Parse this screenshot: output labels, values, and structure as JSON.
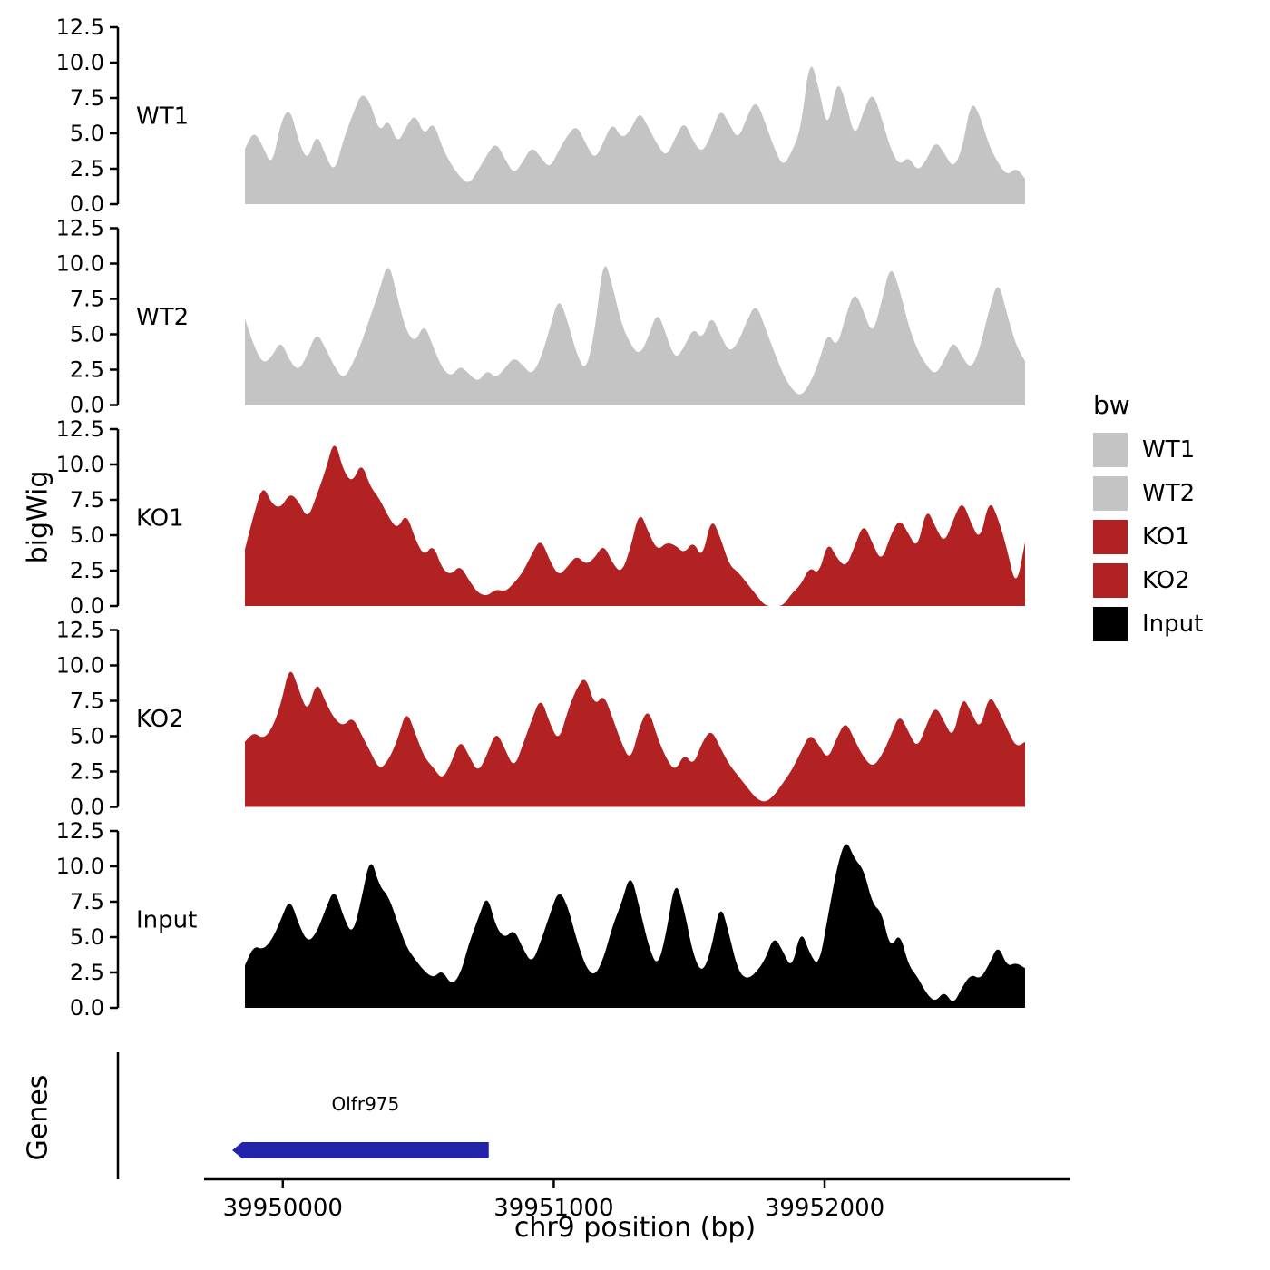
{
  "labels": {
    "y_title": "bigWig",
    "genes_title": "Genes",
    "x_title": "chr9 position (bp)"
  },
  "legend": {
    "title": "bw",
    "items": [
      {
        "label": "WT1",
        "color": "#c4c4c4"
      },
      {
        "label": "WT2",
        "color": "#c4c4c4"
      },
      {
        "label": "KO1",
        "color": "#b22222"
      },
      {
        "label": "KO2",
        "color": "#b22222"
      },
      {
        "label": "Input",
        "color": "#000000"
      }
    ]
  },
  "chart_data": {
    "type": "area",
    "title": "",
    "xlabel": "chr9 position (bp)",
    "ylabel": "bigWig",
    "x_range": [
      39949860,
      39952740
    ],
    "x_ticks": [
      39950000,
      39951000,
      39952000
    ],
    "y_ticks": [
      0.0,
      2.5,
      5.0,
      7.5,
      10.0,
      12.5
    ],
    "ylim": [
      0,
      12.5
    ],
    "tracks": [
      {
        "name": "WT1",
        "color": "#c4c4c4",
        "values": [
          3.9,
          5.2,
          4.1,
          2.6,
          5.8,
          6.9,
          4.4,
          3.0,
          5.1,
          3.4,
          2.2,
          4.6,
          6.3,
          7.9,
          7.2,
          5.0,
          6.1,
          4.2,
          5.5,
          6.4,
          4.8,
          5.9,
          4.0,
          2.8,
          1.9,
          1.4,
          2.4,
          3.5,
          4.4,
          3.2,
          2.1,
          3.0,
          4.1,
          3.3,
          2.5,
          3.8,
          4.9,
          5.6,
          4.3,
          3.1,
          4.4,
          5.8,
          4.6,
          5.2,
          6.6,
          5.4,
          4.2,
          3.3,
          4.7,
          5.9,
          4.4,
          3.6,
          4.9,
          6.8,
          5.7,
          4.5,
          6.2,
          7.4,
          5.8,
          4.0,
          2.6,
          3.7,
          5.3,
          10.5,
          8.2,
          5.1,
          8.9,
          7.3,
          4.6,
          6.6,
          8.0,
          6.1,
          3.9,
          2.7,
          3.4,
          2.3,
          3.1,
          4.5,
          3.6,
          2.5,
          3.9,
          7.4,
          6.2,
          4.1,
          2.9,
          2.0,
          2.6,
          1.8
        ]
      },
      {
        "name": "WT2",
        "color": "#c4c4c4",
        "values": [
          6.1,
          4.2,
          2.9,
          3.4,
          4.6,
          3.1,
          2.4,
          3.6,
          5.2,
          4.0,
          2.7,
          1.8,
          2.9,
          4.4,
          6.3,
          8.1,
          10.3,
          7.6,
          5.2,
          4.4,
          5.8,
          4.1,
          2.6,
          2.0,
          2.8,
          2.2,
          1.6,
          2.5,
          1.9,
          2.6,
          3.4,
          2.8,
          2.1,
          3.3,
          5.4,
          7.7,
          5.9,
          3.6,
          2.3,
          5.1,
          10.6,
          8.4,
          5.7,
          4.3,
          3.5,
          4.8,
          6.7,
          4.9,
          3.2,
          4.1,
          5.5,
          4.6,
          6.4,
          5.0,
          3.7,
          4.4,
          6.0,
          7.2,
          5.5,
          3.8,
          2.2,
          1.1,
          0.6,
          1.5,
          3.0,
          5.2,
          4.0,
          6.3,
          8.1,
          6.6,
          4.9,
          7.3,
          10.0,
          8.2,
          5.6,
          3.9,
          2.8,
          2.1,
          3.2,
          4.6,
          3.4,
          2.5,
          4.1,
          6.8,
          8.9,
          6.4,
          4.2,
          3.1
        ]
      },
      {
        "name": "KO1",
        "color": "#b22222",
        "values": [
          4.0,
          6.5,
          8.6,
          7.2,
          6.9,
          8.0,
          7.4,
          6.1,
          7.8,
          9.6,
          11.9,
          9.5,
          8.7,
          10.2,
          8.4,
          7.6,
          6.3,
          5.4,
          6.6,
          4.7,
          3.5,
          4.4,
          2.6,
          2.2,
          2.9,
          1.8,
          0.9,
          0.7,
          1.2,
          1.0,
          1.6,
          2.4,
          3.7,
          4.8,
          3.2,
          2.1,
          2.8,
          3.6,
          2.9,
          3.4,
          4.4,
          3.0,
          2.3,
          4.1,
          6.8,
          5.2,
          3.9,
          4.5,
          4.3,
          3.7,
          4.6,
          3.3,
          6.3,
          4.9,
          2.9,
          2.4,
          1.6,
          0.8,
          0.0,
          0.0,
          0.0,
          0.9,
          1.5,
          2.8,
          2.2,
          4.6,
          3.4,
          2.7,
          4.2,
          5.9,
          4.4,
          3.1,
          5.0,
          6.2,
          5.1,
          4.0,
          7.0,
          5.6,
          4.4,
          6.1,
          7.5,
          5.8,
          4.6,
          7.6,
          6.2,
          4.0,
          1.2,
          4.5
        ]
      },
      {
        "name": "KO2",
        "color": "#b22222",
        "values": [
          4.6,
          5.3,
          4.8,
          5.5,
          7.2,
          10.1,
          8.3,
          6.6,
          9.0,
          7.4,
          6.2,
          5.7,
          6.4,
          5.1,
          3.9,
          2.6,
          3.3,
          4.7,
          6.9,
          5.2,
          3.5,
          2.8,
          1.9,
          3.1,
          4.8,
          3.6,
          2.4,
          3.7,
          5.4,
          4.1,
          2.7,
          4.4,
          6.2,
          7.8,
          5.9,
          4.6,
          6.8,
          8.4,
          9.3,
          7.1,
          8.0,
          6.3,
          4.5,
          3.2,
          5.7,
          7.0,
          4.9,
          3.4,
          2.5,
          3.8,
          2.9,
          4.6,
          5.5,
          4.2,
          3.0,
          2.2,
          1.4,
          0.6,
          0.3,
          0.8,
          1.7,
          2.6,
          3.9,
          5.2,
          4.4,
          3.3,
          4.9,
          6.1,
          4.7,
          3.5,
          2.8,
          3.6,
          5.0,
          6.6,
          5.3,
          4.1,
          5.8,
          7.2,
          6.0,
          4.8,
          7.9,
          6.7,
          5.4,
          8.0,
          6.9,
          5.5,
          4.2,
          4.6
        ]
      },
      {
        "name": "Input",
        "color": "#000000",
        "values": [
          3.0,
          4.4,
          4.1,
          4.8,
          6.2,
          7.8,
          5.9,
          4.6,
          5.3,
          7.0,
          8.5,
          6.4,
          5.1,
          7.7,
          10.8,
          8.6,
          7.9,
          6.1,
          4.3,
          3.4,
          2.6,
          2.1,
          2.7,
          1.6,
          2.3,
          4.6,
          6.3,
          8.1,
          5.7,
          4.9,
          5.6,
          4.2,
          3.1,
          4.7,
          6.6,
          8.4,
          7.2,
          4.8,
          2.9,
          2.2,
          3.5,
          5.8,
          7.4,
          9.6,
          7.1,
          4.4,
          2.8,
          5.3,
          9.2,
          6.9,
          3.7,
          2.4,
          4.1,
          7.5,
          5.2,
          2.6,
          2.0,
          2.5,
          3.4,
          5.1,
          4.0,
          2.7,
          5.6,
          3.8,
          2.9,
          6.4,
          9.9,
          12.0,
          10.5,
          9.8,
          7.3,
          6.8,
          4.1,
          5.4,
          3.0,
          2.2,
          1.0,
          0.4,
          1.2,
          0.2,
          1.5,
          2.4,
          2.0,
          3.1,
          4.5,
          2.9,
          3.2,
          2.8
        ]
      }
    ],
    "gene_track": {
      "label": "Genes",
      "genes": [
        {
          "name": "Olfr975",
          "start": 39949850,
          "end": 39950760,
          "strand": "-",
          "color": "#2222aa"
        }
      ]
    }
  }
}
